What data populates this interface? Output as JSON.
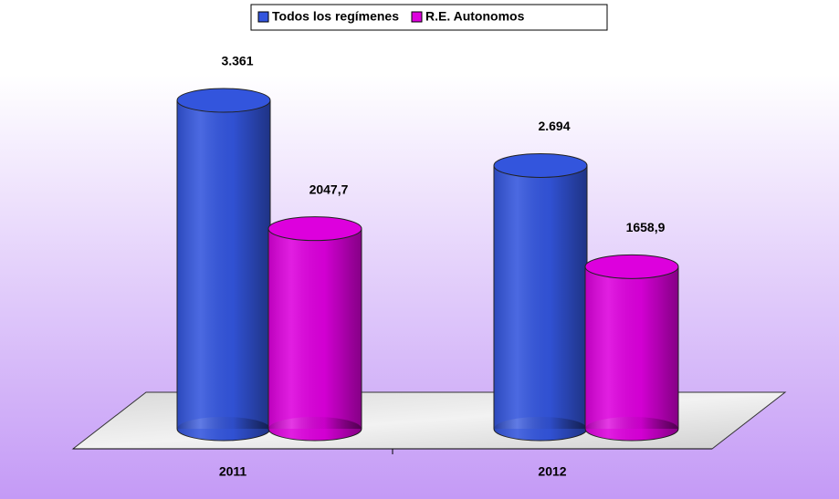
{
  "chart_data": {
    "type": "bar",
    "categories": [
      "2011",
      "2012"
    ],
    "series": [
      {
        "name": "Todos los regímenes",
        "color": "#3355dd",
        "values": [
          3361,
          2694
        ],
        "value_labels": [
          "3.361",
          "2.694"
        ]
      },
      {
        "name": "R.E. Autonomos",
        "color": "#dd00dd",
        "values": [
          2047.7,
          1658.9
        ],
        "value_labels": [
          "2047,7",
          "1658,9"
        ]
      }
    ],
    "legend": "top"
  }
}
